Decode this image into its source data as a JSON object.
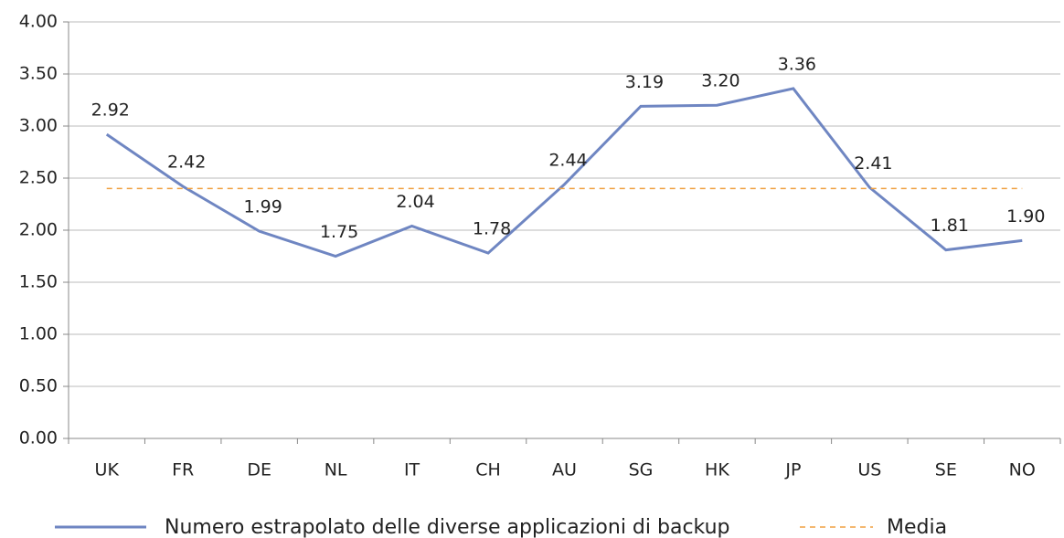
{
  "chart_data": {
    "type": "line",
    "categories": [
      "UK",
      "FR",
      "DE",
      "NL",
      "IT",
      "CH",
      "AU",
      "SG",
      "HK",
      "JP",
      "US",
      "SE",
      "NO"
    ],
    "series": [
      {
        "name": "Numero estrapolato delle diverse applicazioni di backup",
        "color": "#6f86c2",
        "values": [
          2.92,
          2.42,
          1.99,
          1.75,
          2.04,
          1.78,
          2.44,
          3.19,
          3.2,
          3.36,
          2.41,
          1.81,
          1.9
        ],
        "value_labels": [
          "2.92",
          "2.42",
          "1.99",
          "1.75",
          "2.04",
          "1.78",
          "2.44",
          "3.19",
          "3.20",
          "3.36",
          "2.41",
          "1.81",
          "1.90"
        ]
      },
      {
        "name": "Media",
        "color": "#f0a040",
        "dashed": true,
        "values": [
          2.4,
          2.4,
          2.4,
          2.4,
          2.4,
          2.4,
          2.4,
          2.4,
          2.4,
          2.4,
          2.4,
          2.4,
          2.4
        ]
      }
    ],
    "ylim": [
      0,
      4
    ],
    "yticks": [
      {
        "value": 0,
        "label": "0.00"
      },
      {
        "value": 0.5,
        "label": "0.50"
      },
      {
        "value": 1,
        "label": "1.00"
      },
      {
        "value": 1.5,
        "label": "1.50"
      },
      {
        "value": 2,
        "label": "2.00"
      },
      {
        "value": 2.5,
        "label": "2.50"
      },
      {
        "value": 3,
        "label": "3.00"
      },
      {
        "value": 3.5,
        "label": "3.50"
      },
      {
        "value": 4,
        "label": "4.00"
      }
    ],
    "grid": true,
    "legend": "bottom"
  }
}
